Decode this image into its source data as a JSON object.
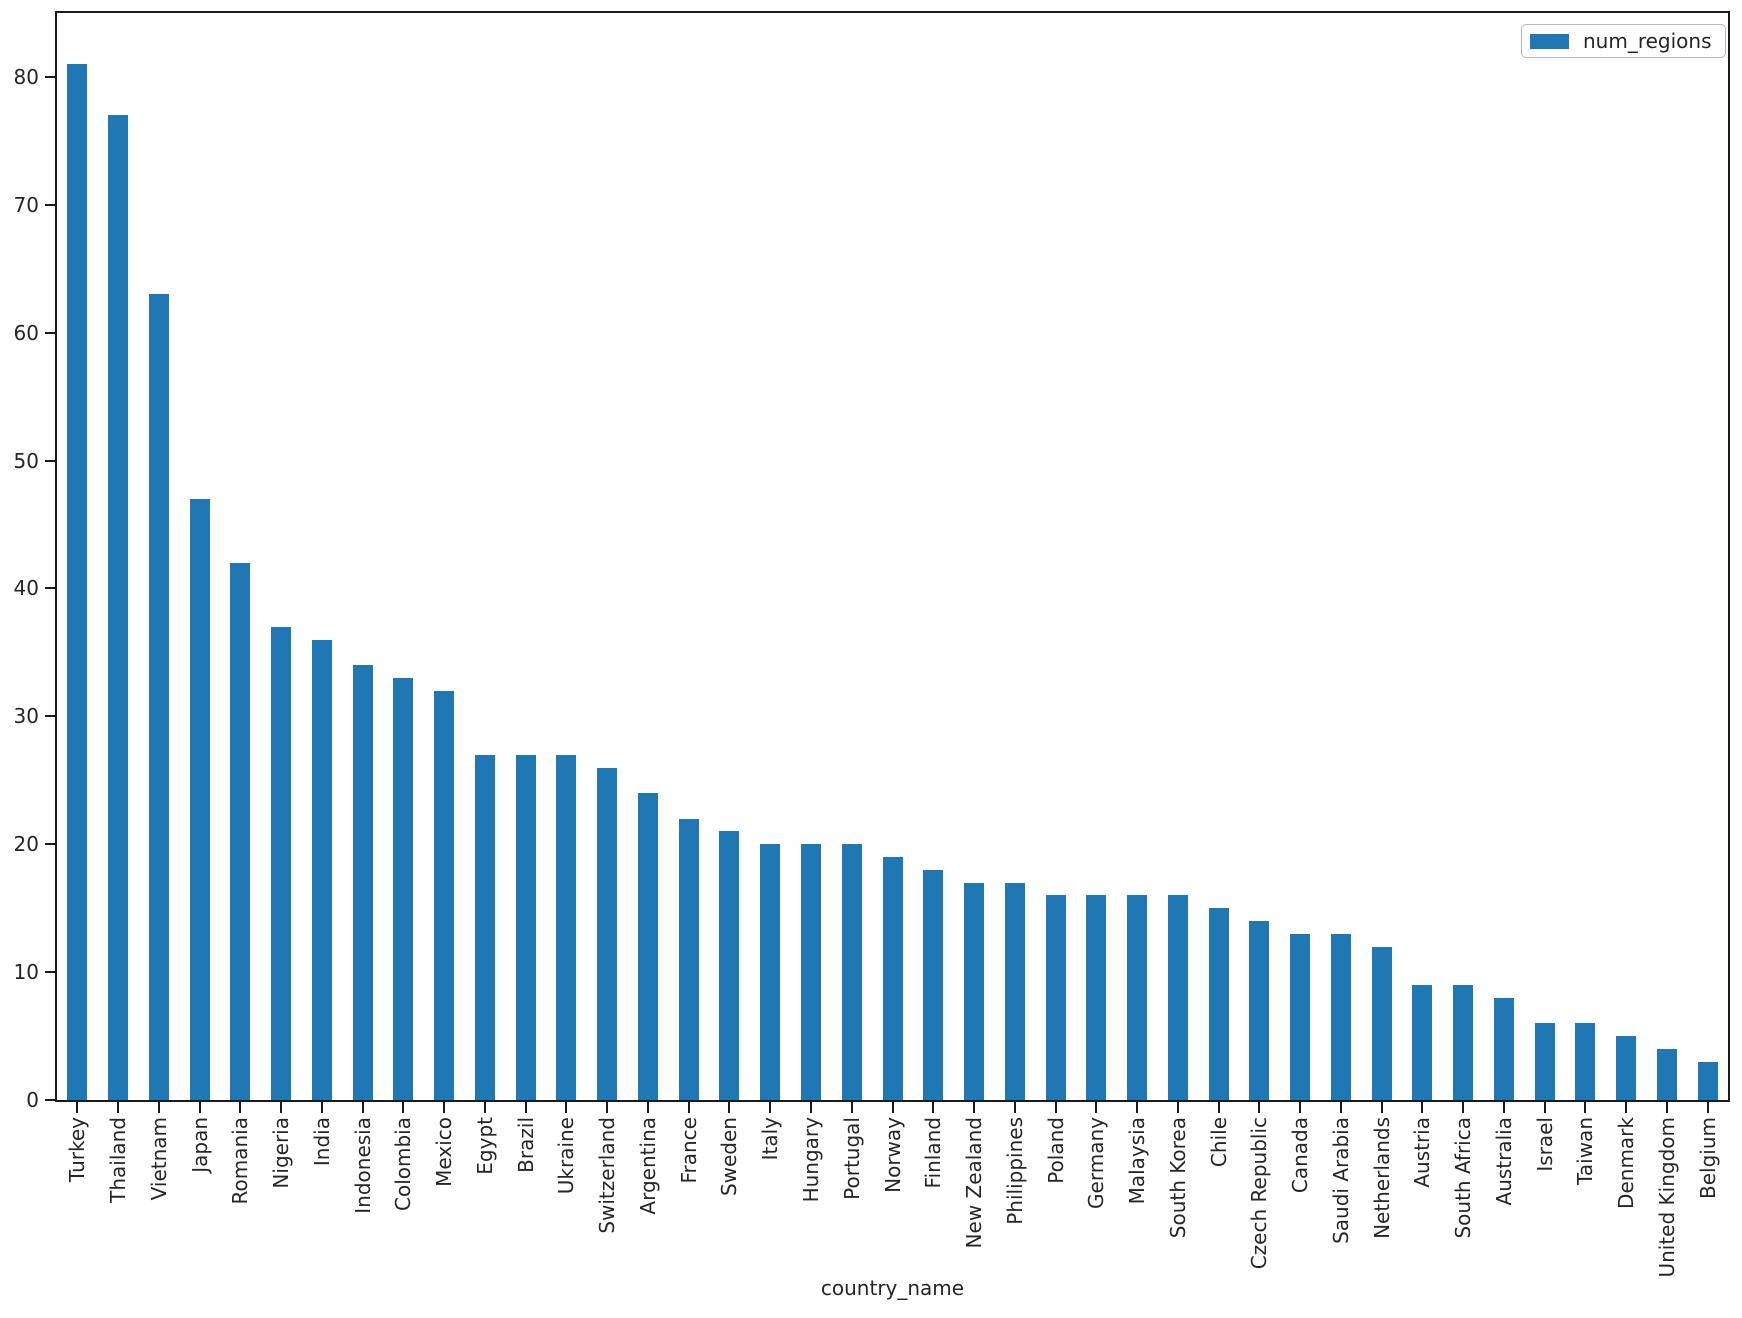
{
  "chart_data": {
    "type": "bar",
    "title": "",
    "xlabel": "country_name",
    "ylabel": "",
    "legend": [
      "num_regions"
    ],
    "legend_position": "upper right",
    "grid": false,
    "bar_color": "#1f77b4",
    "ylim": [
      0,
      85
    ],
    "yticks": [
      0,
      10,
      20,
      30,
      40,
      50,
      60,
      70,
      80
    ],
    "categories": [
      "Turkey",
      "Thailand",
      "Vietnam",
      "Japan",
      "Romania",
      "Nigeria",
      "India",
      "Indonesia",
      "Colombia",
      "Mexico",
      "Egypt",
      "Brazil",
      "Ukraine",
      "Switzerland",
      "Argentina",
      "France",
      "Sweden",
      "Italy",
      "Hungary",
      "Portugal",
      "Norway",
      "Finland",
      "New Zealand",
      "Philippines",
      "Poland",
      "Germany",
      "Malaysia",
      "South Korea",
      "Chile",
      "Czech Republic",
      "Canada",
      "Saudi Arabia",
      "Netherlands",
      "Austria",
      "South Africa",
      "Australia",
      "Israel",
      "Taiwan",
      "Denmark",
      "United Kingdom",
      "Belgium"
    ],
    "values": [
      81,
      77,
      63,
      47,
      42,
      37,
      36,
      34,
      33,
      32,
      27,
      27,
      27,
      26,
      24,
      22,
      21,
      20,
      20,
      20,
      19,
      18,
      17,
      17,
      16,
      16,
      16,
      16,
      15,
      14,
      13,
      13,
      12,
      9,
      9,
      8,
      6,
      6,
      5,
      4,
      3
    ]
  },
  "colors": {
    "accent": "#1f77b4",
    "spine": "#1a1a1a",
    "text": "#262626",
    "legend_border": "#b8b8b8"
  }
}
